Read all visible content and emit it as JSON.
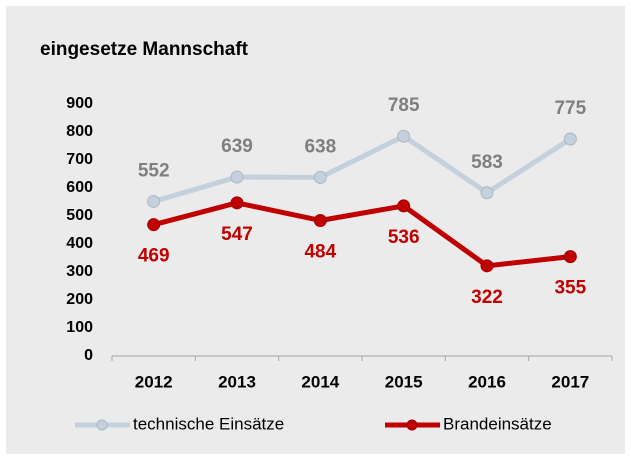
{
  "chart_data": {
    "type": "line",
    "title": "eingesetze Mannschaft",
    "categories": [
      "2012",
      "2013",
      "2014",
      "2015",
      "2016",
      "2017"
    ],
    "series": [
      {
        "name": "technische Einsätze",
        "color": "#c4d0dc",
        "label_color": "#7f7f7f",
        "values": [
          552,
          639,
          638,
          785,
          583,
          775
        ]
      },
      {
        "name": "Brandeinsätze",
        "color": "#c00000",
        "label_color": "#c00000",
        "values": [
          469,
          547,
          484,
          536,
          322,
          355
        ]
      }
    ],
    "ylim": [
      0,
      900
    ],
    "yticks": [
      0,
      100,
      200,
      300,
      400,
      500,
      600,
      700,
      800,
      900
    ],
    "grid": false
  }
}
